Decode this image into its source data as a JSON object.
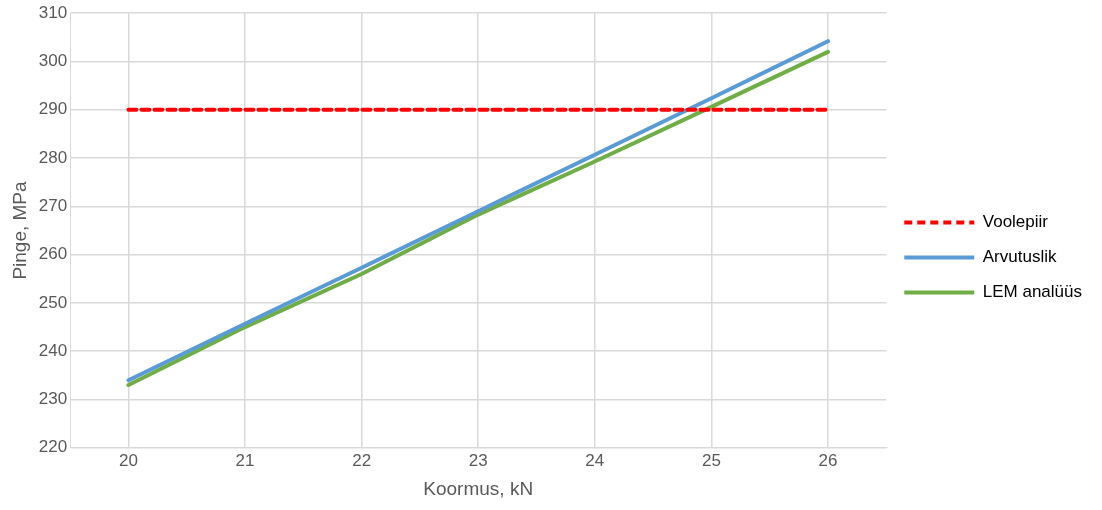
{
  "chart_data": {
    "type": "line",
    "xlabel": "Koormus, kN",
    "ylabel": "Pinge, MPa",
    "x": [
      20,
      21,
      22,
      23,
      24,
      25,
      26
    ],
    "series": [
      {
        "name": "Voolepiir",
        "color": "#ff0000",
        "values": [
          290,
          290,
          290,
          290,
          290,
          290,
          290
        ],
        "line_style": "dashed"
      },
      {
        "name": "Arvutuslik",
        "color": "#5b9bd5",
        "values": [
          234,
          245.7,
          257.3,
          269,
          280.7,
          292.4,
          304.2
        ]
      },
      {
        "name": "LEM analüüs",
        "color": "#70ad47",
        "values": [
          233,
          245,
          256,
          268.3,
          279.3,
          290.6,
          302
        ]
      }
    ],
    "xlim": [
      19.5,
      26.5
    ],
    "xticks": [
      20,
      21,
      22,
      23,
      24,
      25,
      26
    ],
    "ylim": [
      220,
      310
    ],
    "yticks": [
      220,
      230,
      240,
      250,
      260,
      270,
      280,
      290,
      300,
      310
    ],
    "grid": true,
    "legend": "right",
    "marker": "none"
  }
}
